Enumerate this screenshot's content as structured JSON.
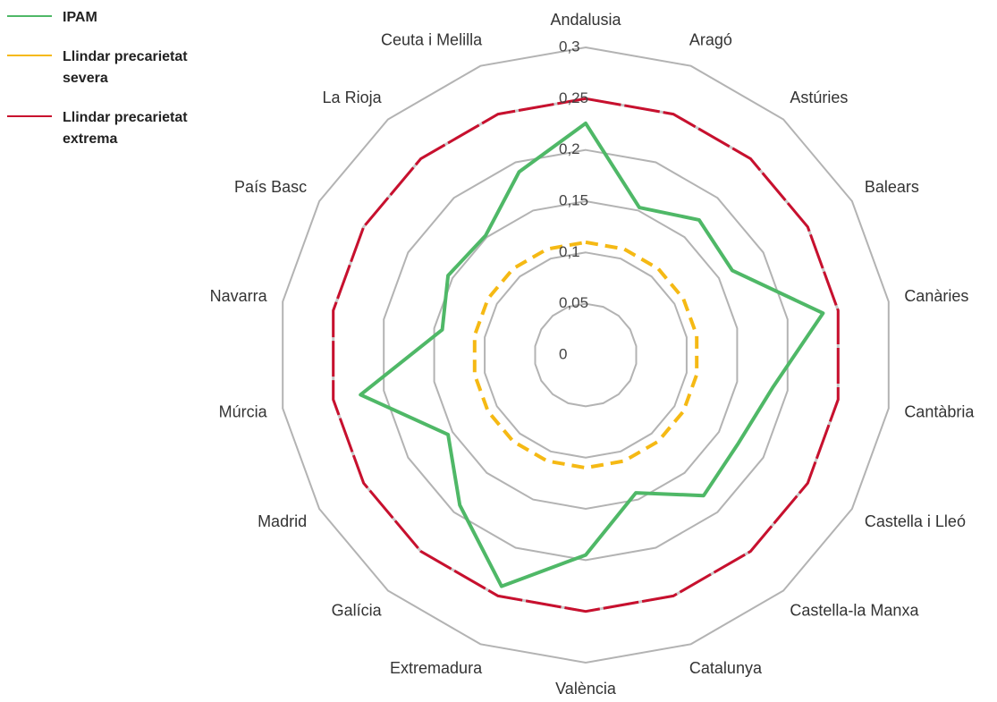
{
  "chart_data": {
    "type": "radar",
    "categories": [
      "Andalusia",
      "Aragó",
      "Astúries",
      "Balears",
      "Canàries",
      "Cantàbria",
      "Castella i Lleó",
      "Castella-la Manxa",
      "Catalunya",
      "València",
      "Extremadura",
      "Galícia",
      "Madrid",
      "Múrcia",
      "Navarra",
      "País Basc",
      "La Rioja",
      "Ceuta i Melilla"
    ],
    "series": [
      {
        "name": "IPAM",
        "color": "#4fb867",
        "values": [
          0.226,
          0.153,
          0.172,
          0.165,
          0.235,
          0.185,
          0.172,
          0.179,
          0.143,
          0.195,
          0.24,
          0.191,
          0.155,
          0.223,
          0.142,
          0.155,
          0.152,
          0.19
        ]
      },
      {
        "name": "Llindar precarietat severa",
        "color": "#f5b914",
        "values": [
          0.11,
          0.11,
          0.11,
          0.11,
          0.11,
          0.11,
          0.11,
          0.11,
          0.11,
          0.11,
          0.11,
          0.11,
          0.11,
          0.11,
          0.11,
          0.11,
          0.11,
          0.11
        ]
      },
      {
        "name": "Llindar precarietat extrema",
        "color": "#c8102e",
        "values": [
          0.25,
          0.25,
          0.25,
          0.25,
          0.25,
          0.25,
          0.25,
          0.25,
          0.25,
          0.25,
          0.25,
          0.25,
          0.25,
          0.25,
          0.25,
          0.25,
          0.25,
          0.25
        ]
      }
    ],
    "ylim": [
      0,
      0.3
    ],
    "yticks": [
      0,
      {
        "value": 0.05,
        "label": "0,05"
      },
      {
        "value": 0.1,
        "label": "0,1"
      },
      {
        "value": 0.15,
        "label": "0,15"
      },
      {
        "value": 0.2,
        "label": "0,2"
      },
      {
        "value": 0.25,
        "label": "0,25"
      },
      {
        "value": 0.3,
        "label": "0,3"
      }
    ],
    "grid": true,
    "legend": "top-left"
  }
}
